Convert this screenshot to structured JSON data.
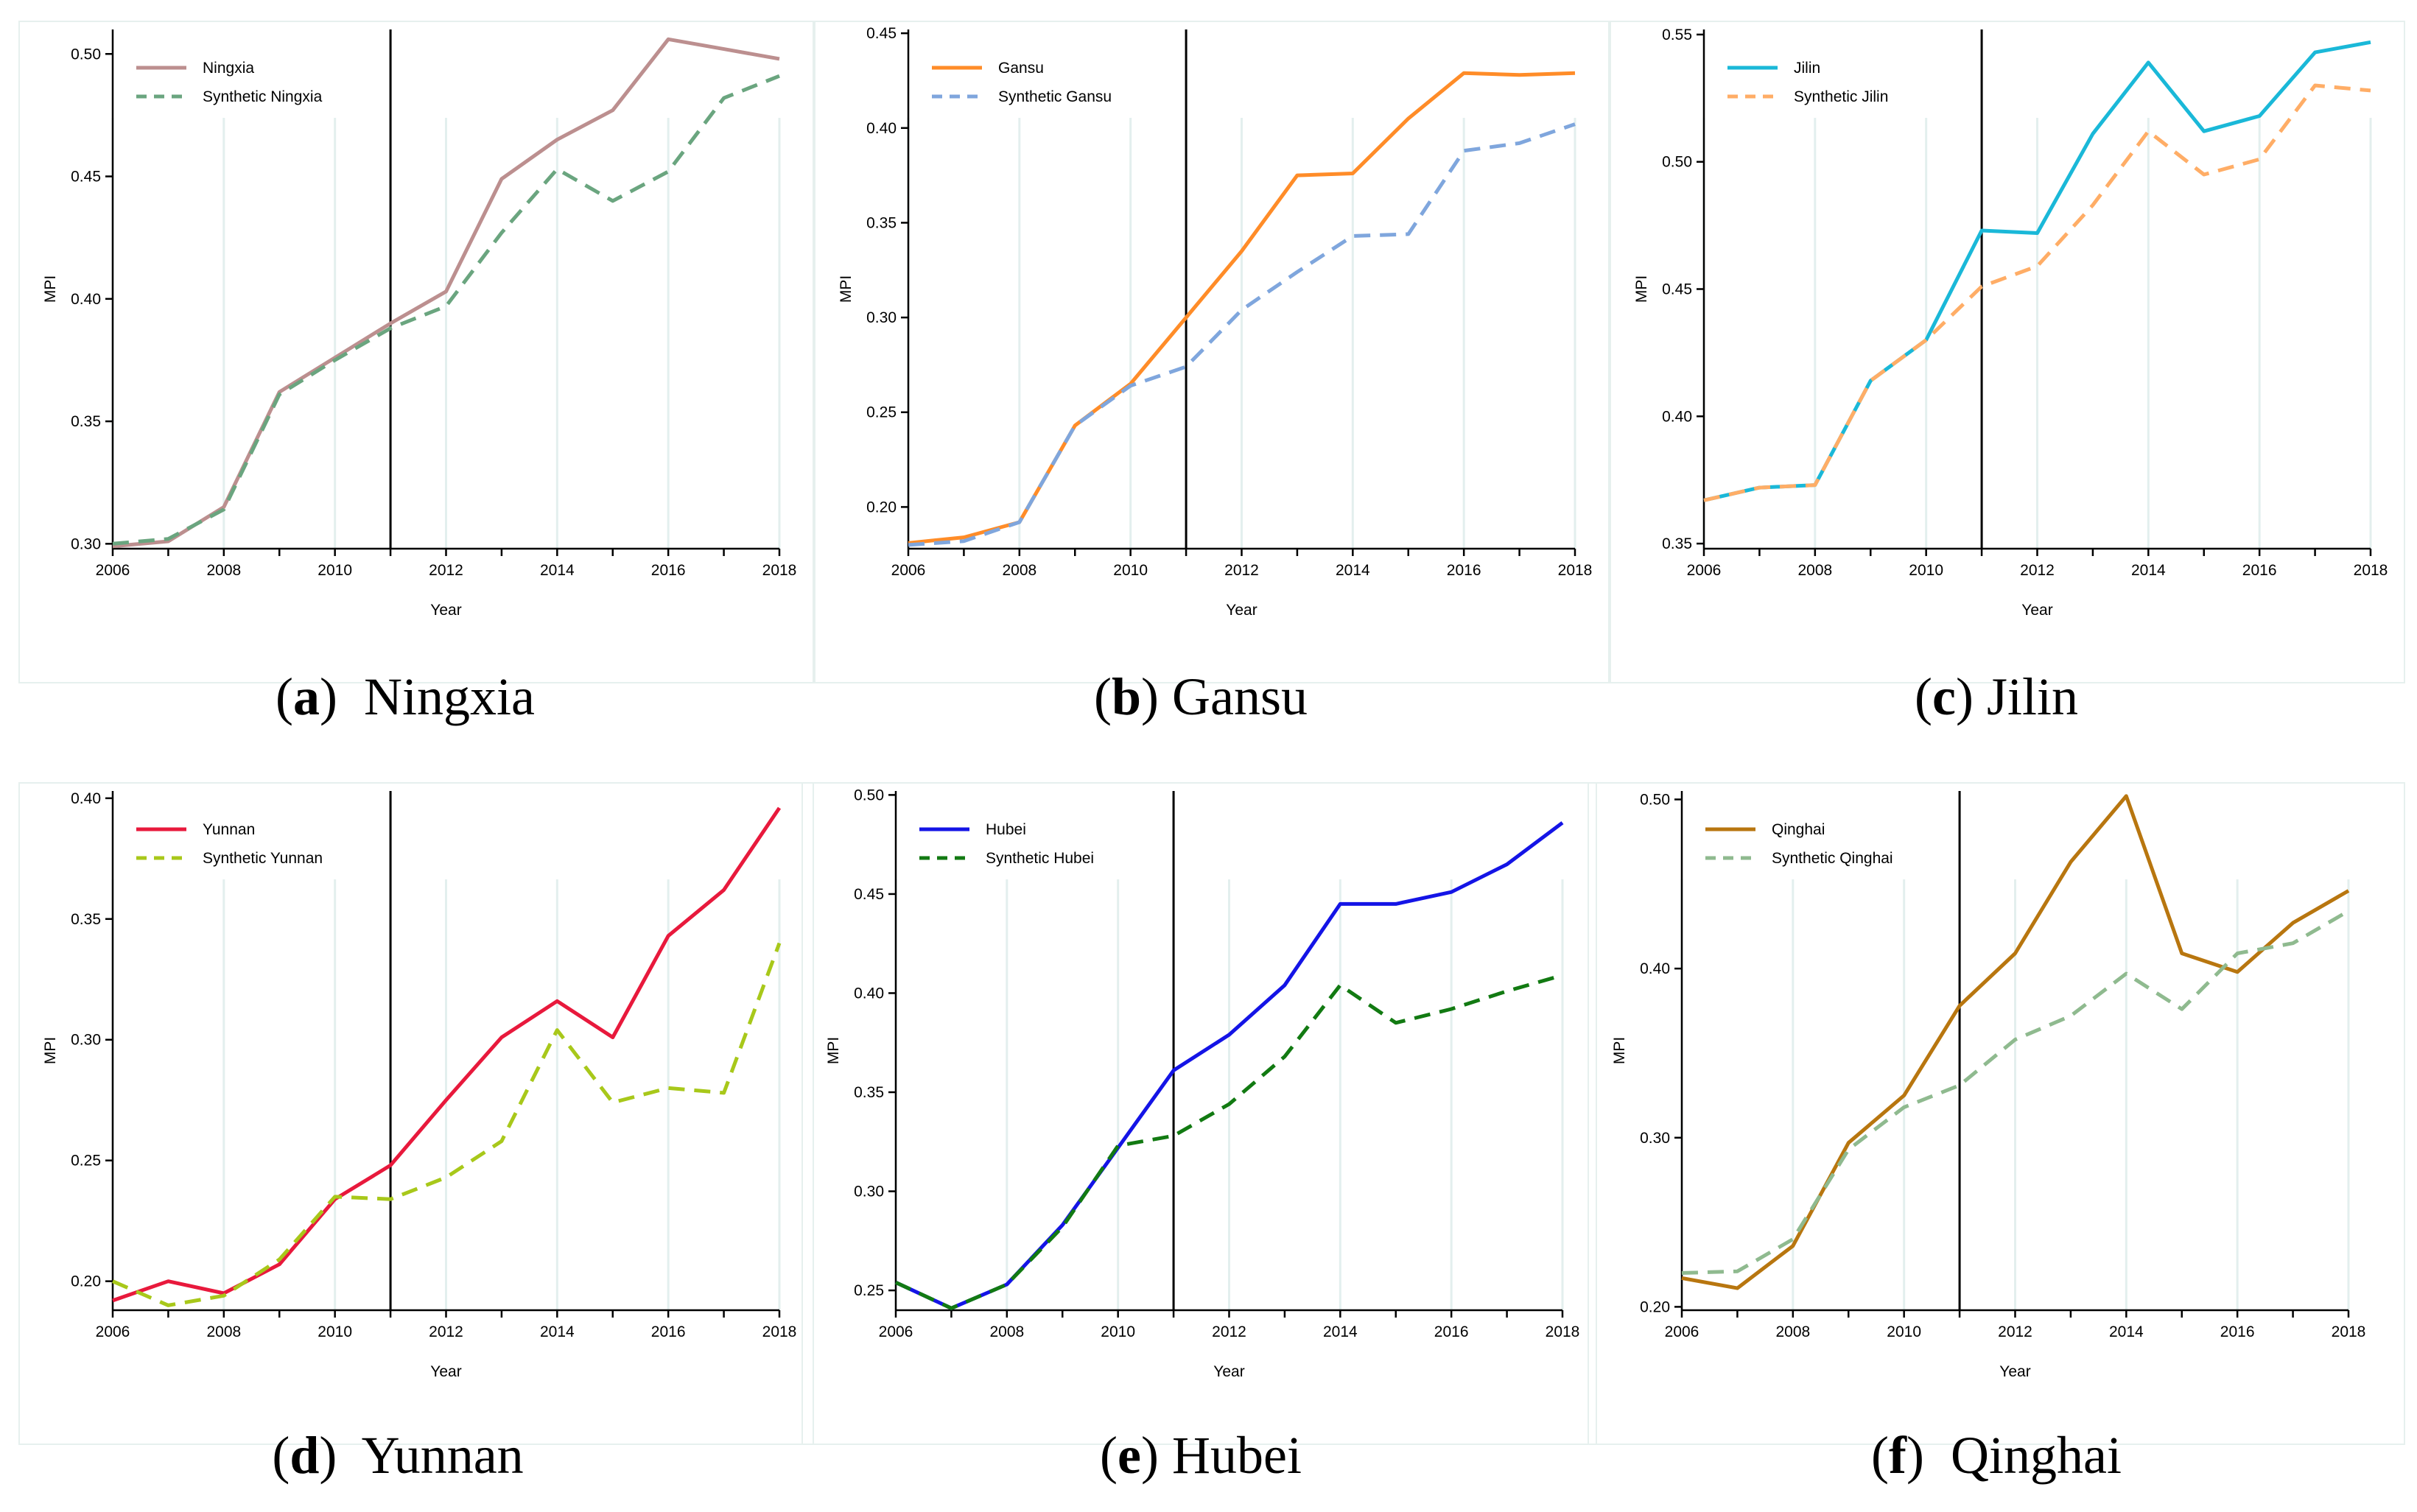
{
  "chart_data": [
    {
      "type": "line",
      "panel_letter": "a",
      "title": "Ningxia",
      "xlabel": "Year",
      "ylabel": "MPI",
      "x": [
        2006,
        2007,
        2008,
        2009,
        2010,
        2011,
        2012,
        2013,
        2014,
        2015,
        2016,
        2017,
        2018
      ],
      "xticks": [
        "2006",
        "2008",
        "2010",
        "2012",
        "2014",
        "2016",
        "2018"
      ],
      "ylim": [
        0.298,
        0.51
      ],
      "yticks": [
        "0.30",
        "0.35",
        "0.40",
        "0.45",
        "0.50"
      ],
      "intervention_year": 2011,
      "legend": "top-left",
      "series": [
        {
          "name": "Ningxia",
          "style": "solid",
          "color": "#bc8f8f",
          "values": [
            0.299,
            0.301,
            0.315,
            0.362,
            0.376,
            0.39,
            0.403,
            0.449,
            0.465,
            0.477,
            0.506,
            0.502,
            0.498
          ]
        },
        {
          "name": "Synthetic Ningxia",
          "style": "dashed",
          "color": "#6aa57f",
          "values": [
            0.3,
            0.302,
            0.314,
            0.361,
            0.375,
            0.388,
            0.397,
            0.427,
            0.453,
            0.44,
            0.452,
            0.482,
            0.491
          ]
        }
      ]
    },
    {
      "type": "line",
      "panel_letter": "b",
      "title": "Gansu",
      "xlabel": "Year",
      "ylabel": "MPI",
      "x": [
        2006,
        2007,
        2008,
        2009,
        2010,
        2011,
        2012,
        2013,
        2014,
        2015,
        2016,
        2017,
        2018
      ],
      "xticks": [
        "2006",
        "2008",
        "2010",
        "2012",
        "2014",
        "2016",
        "2018"
      ],
      "ylim": [
        0.178,
        0.452
      ],
      "yticks": [
        "0.20",
        "0.25",
        "0.30",
        "0.35",
        "0.40",
        "0.45"
      ],
      "intervention_year": 2011,
      "legend": "top-left",
      "series": [
        {
          "name": "Gansu",
          "style": "solid",
          "color": "#ff8c28",
          "values": [
            0.181,
            0.184,
            0.192,
            0.243,
            0.265,
            0.3,
            0.335,
            0.375,
            0.376,
            0.405,
            0.429,
            0.428,
            0.429
          ]
        },
        {
          "name": "Synthetic Gansu",
          "style": "dashed",
          "color": "#7fa6dd",
          "values": [
            0.18,
            0.182,
            0.192,
            0.243,
            0.264,
            0.274,
            0.304,
            0.324,
            0.343,
            0.344,
            0.388,
            0.392,
            0.402
          ]
        }
      ]
    },
    {
      "type": "line",
      "panel_letter": "c",
      "title": "Jilin",
      "xlabel": "Year",
      "ylabel": "MPI",
      "x": [
        2006,
        2007,
        2008,
        2009,
        2010,
        2011,
        2012,
        2013,
        2014,
        2015,
        2016,
        2017,
        2018
      ],
      "xticks": [
        "2006",
        "2008",
        "2010",
        "2012",
        "2014",
        "2016",
        "2018"
      ],
      "ylim": [
        0.348,
        0.552
      ],
      "yticks": [
        "0.35",
        "0.40",
        "0.45",
        "0.50",
        "0.55"
      ],
      "intervention_year": 2011,
      "legend": "top-left",
      "series": [
        {
          "name": "Jilin",
          "style": "solid",
          "color": "#1ab8d8",
          "values": [
            0.367,
            0.372,
            0.373,
            0.414,
            0.43,
            0.473,
            0.472,
            0.511,
            0.539,
            0.512,
            0.518,
            0.543,
            0.547
          ]
        },
        {
          "name": "Synthetic Jilin",
          "style": "dashed",
          "color": "#ffad66",
          "values": [
            0.367,
            0.372,
            0.373,
            0.414,
            0.43,
            0.451,
            0.459,
            0.483,
            0.512,
            0.495,
            0.501,
            0.53,
            0.528
          ]
        }
      ]
    },
    {
      "type": "line",
      "panel_letter": "d",
      "title": "Yunnan",
      "xlabel": "Year",
      "ylabel": "MPI",
      "x": [
        2006,
        2007,
        2008,
        2009,
        2010,
        2011,
        2012,
        2013,
        2014,
        2015,
        2016,
        2017,
        2018
      ],
      "xticks": [
        "2006",
        "2008",
        "2010",
        "2012",
        "2014",
        "2016",
        "2018"
      ],
      "ylim": [
        0.188,
        0.403
      ],
      "yticks": [
        "0.20",
        "0.25",
        "0.30",
        "0.35",
        "0.40"
      ],
      "intervention_year": 2011,
      "legend": "top-left",
      "series": [
        {
          "name": "Yunnan",
          "style": "solid",
          "color": "#e8193c",
          "values": [
            0.192,
            0.2,
            0.195,
            0.207,
            0.234,
            0.248,
            0.275,
            0.301,
            0.316,
            0.301,
            0.343,
            0.362,
            0.396
          ]
        },
        {
          "name": "Synthetic Yunnan",
          "style": "dashed",
          "color": "#a8c81a",
          "values": [
            0.2,
            0.19,
            0.194,
            0.209,
            0.235,
            0.234,
            0.243,
            0.258,
            0.304,
            0.274,
            0.28,
            0.278,
            0.34
          ]
        }
      ]
    },
    {
      "type": "line",
      "panel_letter": "e",
      "title": "Hubei",
      "xlabel": "Year",
      "ylabel": "MPI",
      "x": [
        2006,
        2007,
        2008,
        2009,
        2010,
        2011,
        2012,
        2013,
        2014,
        2015,
        2016,
        2017,
        2018
      ],
      "xticks": [
        "2006",
        "2008",
        "2010",
        "2012",
        "2014",
        "2016",
        "2018"
      ],
      "ylim": [
        0.24,
        0.502
      ],
      "yticks": [
        "0.25",
        "0.30",
        "0.35",
        "0.40",
        "0.45",
        "0.50"
      ],
      "intervention_year": 2011,
      "legend": "top-left",
      "series": [
        {
          "name": "Hubei",
          "style": "solid",
          "color": "#1414e6",
          "values": [
            0.254,
            0.241,
            0.253,
            0.283,
            0.322,
            0.361,
            0.379,
            0.404,
            0.445,
            0.445,
            0.451,
            0.465,
            0.486
          ]
        },
        {
          "name": "Synthetic Hubei",
          "style": "dashed",
          "color": "#127a12",
          "values": [
            0.254,
            0.241,
            0.253,
            0.282,
            0.323,
            0.328,
            0.344,
            0.368,
            0.404,
            0.385,
            0.392,
            0.401,
            0.409
          ]
        }
      ]
    },
    {
      "type": "line",
      "panel_letter": "f",
      "title": "Qinghai",
      "xlabel": "Year",
      "ylabel": "MPI",
      "x": [
        2006,
        2007,
        2008,
        2009,
        2010,
        2011,
        2012,
        2013,
        2014,
        2015,
        2016,
        2017,
        2018
      ],
      "xticks": [
        "2006",
        "2008",
        "2010",
        "2012",
        "2014",
        "2016",
        "2018"
      ],
      "ylim": [
        0.198,
        0.505
      ],
      "yticks": [
        "0.20",
        "0.30",
        "0.40",
        "0.50"
      ],
      "intervention_year": 2011,
      "legend": "top-left",
      "series": [
        {
          "name": "Qinghai",
          "style": "solid",
          "color": "#b8760f",
          "values": [
            0.217,
            0.211,
            0.236,
            0.297,
            0.325,
            0.378,
            0.409,
            0.463,
            0.502,
            0.409,
            0.398,
            0.427,
            0.446
          ]
        },
        {
          "name": "Synthetic Qinghai",
          "style": "dashed",
          "color": "#8fba8f",
          "values": [
            0.22,
            0.221,
            0.24,
            0.293,
            0.318,
            0.331,
            0.358,
            0.372,
            0.397,
            0.376,
            0.409,
            0.415,
            0.434
          ]
        }
      ]
    }
  ]
}
